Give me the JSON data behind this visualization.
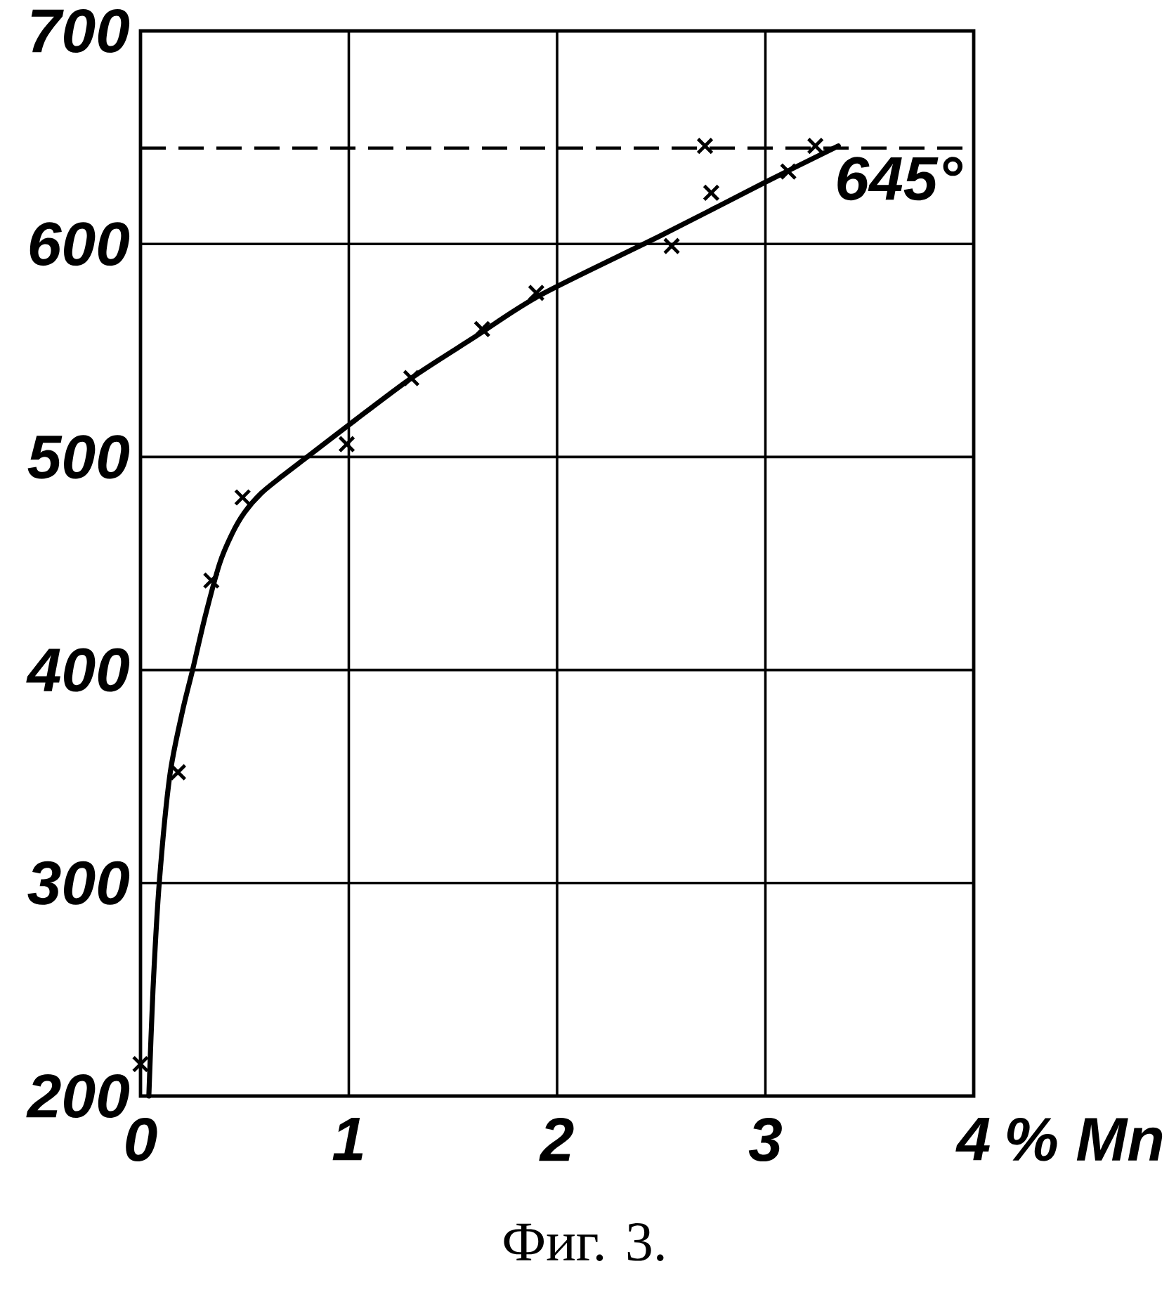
{
  "chart_data": {
    "type": "line",
    "xlabel": "% Mn",
    "xlim": [
      0,
      4
    ],
    "ylim": [
      200,
      700
    ],
    "xticks": [
      0,
      1,
      2,
      3,
      4
    ],
    "yticks": [
      200,
      300,
      400,
      500,
      600,
      700
    ],
    "grid": true,
    "series": [
      {
        "color": "#000000",
        "line_style": "solid",
        "x": [
          0.04,
          0.06,
          0.09,
          0.14,
          0.2,
          0.25,
          0.31,
          0.38,
          0.44,
          0.5,
          0.58,
          0.68,
          0.8,
          1.0,
          1.3,
          1.6,
          1.92,
          2.5,
          3.0,
          3.35
        ],
        "values": [
          200,
          250,
          300,
          350,
          380,
          400,
          425,
          450,
          464,
          474,
          483,
          491,
          500,
          515,
          537,
          556,
          576,
          604,
          629,
          646
        ]
      },
      {
        "type": "scatter",
        "color": "#000000",
        "marker": "cross",
        "x": [
          0,
          0.18,
          0.34,
          0.49,
          0.99,
          1.3,
          1.64,
          1.9,
          2.55,
          2.74,
          2.71,
          3.11,
          3.24
        ],
        "values": [
          215,
          352,
          442,
          481,
          506,
          537,
          560,
          577,
          599,
          624,
          646,
          634,
          646
        ]
      }
    ],
    "ref_lines": [
      {
        "axis": "y",
        "value": 645,
        "label": "645°",
        "line_style": "dashed",
        "color": "#000000"
      }
    ],
    "annotations": [
      "Фиг. 3."
    ]
  }
}
